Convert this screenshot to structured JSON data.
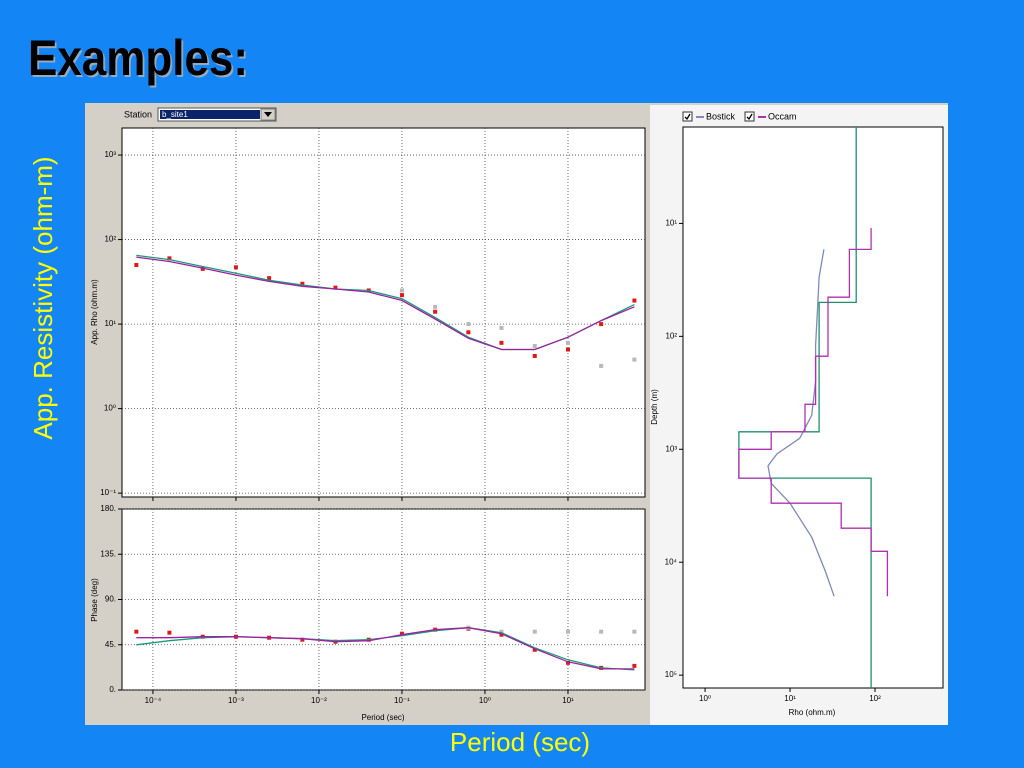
{
  "title": "Examples:",
  "side_label": "App. Resistivity (ohm-m)",
  "bottom_label": "Period (sec)",
  "station": {
    "label": "Station",
    "value": "b_site1"
  },
  "chart_data": [
    {
      "type": "line",
      "xscale": "log",
      "yscale": "log",
      "grid": true,
      "ylabel": "App. Rho (ohm.m)",
      "xlim": [
        4.24e-05,
        84.7
      ],
      "ylim": [
        0.09,
        2090
      ],
      "xticks": [
        0.0001,
        0.001,
        0.01,
        0.1,
        1,
        10
      ],
      "yticks": [
        {
          "value": 0.1,
          "label": "10⁻¹"
        },
        {
          "value": 1,
          "label": "10⁰"
        },
        {
          "value": 10,
          "label": "10¹"
        },
        {
          "value": 100,
          "label": "10²"
        },
        {
          "value": 1000,
          "label": "10³"
        }
      ],
      "x": [
        6.31e-05,
        0.000158,
        0.000398,
        0.001,
        0.00251,
        0.00631,
        0.0158,
        0.0398,
        0.1,
        0.251,
        0.631,
        1.58,
        3.98,
        10,
        25.1,
        63.1
      ],
      "series": [
        {
          "mode": "markers",
          "color": "#e01818",
          "values": [
            50,
            60,
            45,
            47,
            35,
            30,
            27,
            25,
            22,
            14,
            8,
            6,
            4.2,
            5,
            10,
            19
          ]
        },
        {
          "mode": "markers",
          "color": "#b8b8b8",
          "values": [
            null,
            null,
            null,
            null,
            null,
            null,
            null,
            null,
            25,
            16,
            10,
            9,
            5.5,
            6,
            3.2,
            3.8
          ]
        },
        {
          "mode": "line",
          "color": "#1a9a7a",
          "values": [
            65,
            58,
            48,
            40,
            33,
            29,
            26,
            25,
            20,
            12,
            7,
            5,
            5,
            7,
            11,
            17
          ]
        },
        {
          "mode": "line",
          "color": "#a020a0",
          "values": [
            62,
            55,
            46,
            38,
            32,
            28,
            26,
            24,
            19,
            11.5,
            6.8,
            5,
            5,
            7,
            11,
            16
          ]
        }
      ]
    },
    {
      "type": "line",
      "xscale": "log",
      "yscale": "linear",
      "grid": true,
      "ylabel": "Phase (deg)",
      "xlabel": "Period (sec)",
      "xlim": [
        4.24e-05,
        84.7
      ],
      "ylim": [
        0,
        180
      ],
      "xticks": [
        {
          "value": 0.0001,
          "label": "10⁻⁴"
        },
        {
          "value": 0.001,
          "label": "10⁻³"
        },
        {
          "value": 0.01,
          "label": "10⁻²"
        },
        {
          "value": 0.1,
          "label": "10⁻¹"
        },
        {
          "value": 1,
          "label": "10⁰"
        },
        {
          "value": 10,
          "label": "10¹"
        }
      ],
      "yticks": [
        {
          "value": 0,
          "label": "0."
        },
        {
          "value": 45,
          "label": "45."
        },
        {
          "value": 90,
          "label": "90."
        },
        {
          "value": 135,
          "label": "135."
        },
        {
          "value": 180,
          "label": "180."
        }
      ],
      "x": [
        6.31e-05,
        0.000158,
        0.000398,
        0.001,
        0.00251,
        0.00631,
        0.0158,
        0.0398,
        0.1,
        0.251,
        0.631,
        1.58,
        3.98,
        10,
        25.1,
        63.1
      ],
      "series": [
        {
          "mode": "markers",
          "color": "#e01818",
          "values": [
            58,
            57,
            53,
            53,
            52,
            50,
            48,
            50,
            56,
            60,
            61,
            55,
            40,
            27,
            22,
            24
          ]
        },
        {
          "mode": "markers",
          "color": "#b8b8b8",
          "values": [
            null,
            null,
            null,
            null,
            null,
            null,
            null,
            null,
            null,
            null,
            62,
            58,
            58,
            58,
            58,
            58
          ]
        },
        {
          "mode": "line",
          "color": "#1a9a7a",
          "values": [
            45,
            49,
            52,
            53,
            52,
            51,
            49,
            50,
            54,
            59,
            62,
            57,
            42,
            30,
            22,
            20
          ]
        },
        {
          "mode": "line",
          "color": "#a020a0",
          "values": [
            52,
            52,
            53,
            53,
            52,
            51,
            48,
            49,
            55,
            60,
            62,
            56,
            41,
            28,
            21,
            21
          ]
        }
      ]
    },
    {
      "type": "line",
      "xscale": "log",
      "yscale": "log",
      "yinvert": true,
      "grid": false,
      "ylabel": "Depth (m)",
      "xlabel": "Rho (ohm.m)",
      "xlim": [
        0.55,
        631
      ],
      "ylim": [
        1.4,
        130000
      ],
      "xticks": [
        {
          "value": 1,
          "label": "10⁰"
        },
        {
          "value": 10,
          "label": "10¹"
        },
        {
          "value": 100,
          "label": "10²"
        }
      ],
      "yticks": [
        {
          "value": 10,
          "label": "10¹"
        },
        {
          "value": 100,
          "label": "10²"
        },
        {
          "value": 1000,
          "label": "10³"
        },
        {
          "value": 10000,
          "label": "10⁴"
        },
        {
          "value": 100000,
          "label": "10⁵"
        }
      ],
      "series": [
        {
          "mode": "line",
          "color": "#1f8f6f",
          "x": [
            60,
            60,
            22,
            22,
            2.5,
            2.5,
            90,
            90
          ],
          "values": [
            1.4,
            50,
            50,
            700,
            700,
            1800,
            1800,
            130000
          ]
        },
        {
          "name": "Bostick",
          "mode": "line",
          "color": "#7f8ab8",
          "x": [
            25,
            22,
            21,
            20,
            20,
            18,
            13,
            7,
            5.5,
            6,
            10,
            18,
            26,
            33
          ],
          "values": [
            17,
            30,
            60,
            120,
            250,
            500,
            800,
            1100,
            1400,
            2000,
            3000,
            6000,
            12000,
            20000
          ]
        },
        {
          "name": "Occam",
          "mode": "line",
          "color": "#b030b0",
          "x": [
            90,
            90,
            50,
            50,
            28,
            28,
            20,
            20,
            15,
            15,
            6,
            6,
            2.5,
            2.5,
            6,
            6,
            40,
            40,
            90,
            90,
            140,
            140
          ],
          "values": [
            11,
            17,
            17,
            45,
            45,
            150,
            150,
            400,
            400,
            700,
            700,
            1000,
            1000,
            1800,
            1800,
            3000,
            3000,
            5000,
            5000,
            8000,
            8000,
            20000
          ]
        }
      ]
    }
  ]
}
